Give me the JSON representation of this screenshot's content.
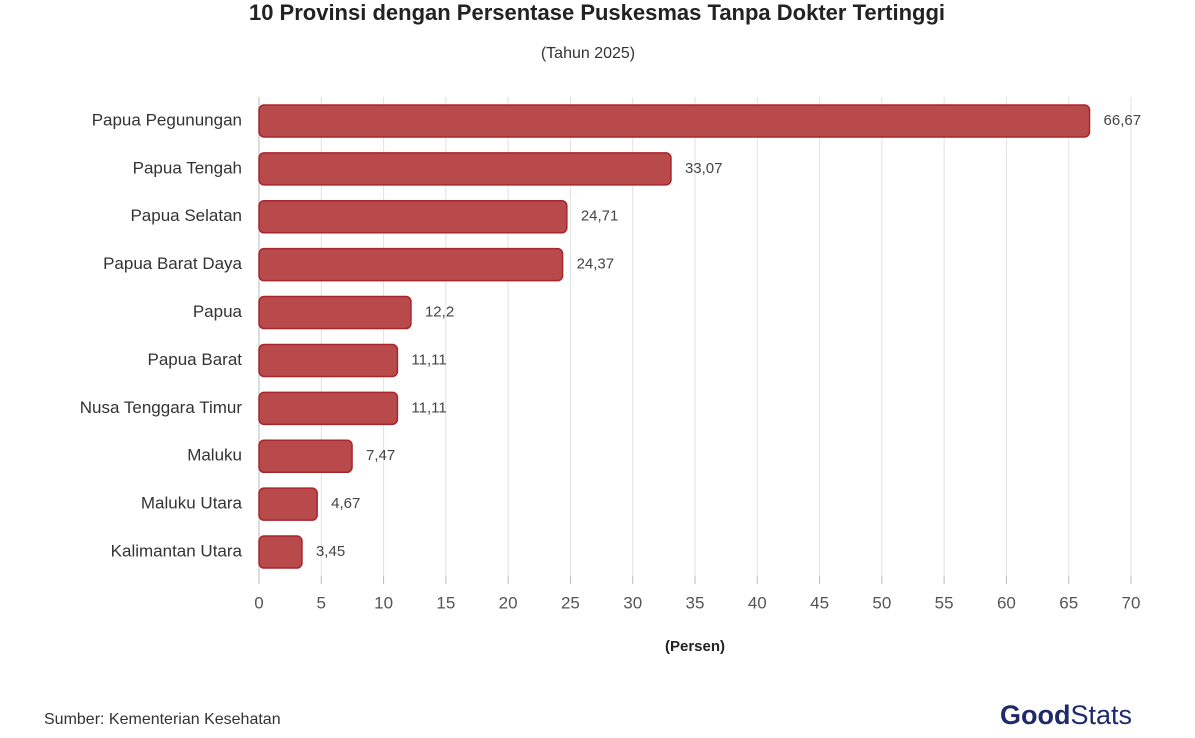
{
  "chart_data": {
    "type": "bar",
    "orientation": "horizontal",
    "title": "10 Provinsi dengan Persentase Puskesmas Tanpa Dokter Tertinggi",
    "subtitle": "(Tahun 2025)",
    "x_label": "(Persen)",
    "categories": [
      "Papua Pegunungan",
      "Papua Tengah",
      "Papua Selatan",
      "Papua Barat Daya",
      "Papua",
      "Papua Barat",
      "Nusa Tenggara Timur",
      "Maluku",
      "Maluku Utara",
      "Kalimantan Utara"
    ],
    "values": [
      66.67,
      33.07,
      24.71,
      24.37,
      12.2,
      11.11,
      11.11,
      7.47,
      4.67,
      3.45
    ],
    "value_labels": [
      "66,67",
      "33,07",
      "24,71",
      "24,37",
      "12,2",
      "11,11",
      "11,11",
      "7,47",
      "4,67",
      "3,45"
    ],
    "color": "#b84a4c",
    "xlim": [
      0,
      70
    ],
    "xticks": [
      0,
      5,
      10,
      15,
      20,
      25,
      30,
      35,
      40,
      45,
      50,
      55,
      60,
      65,
      70
    ],
    "grid": true
  },
  "source": "Sumber: Kementerian Kesehatan",
  "logo": [
    "Good",
    "Stats"
  ]
}
